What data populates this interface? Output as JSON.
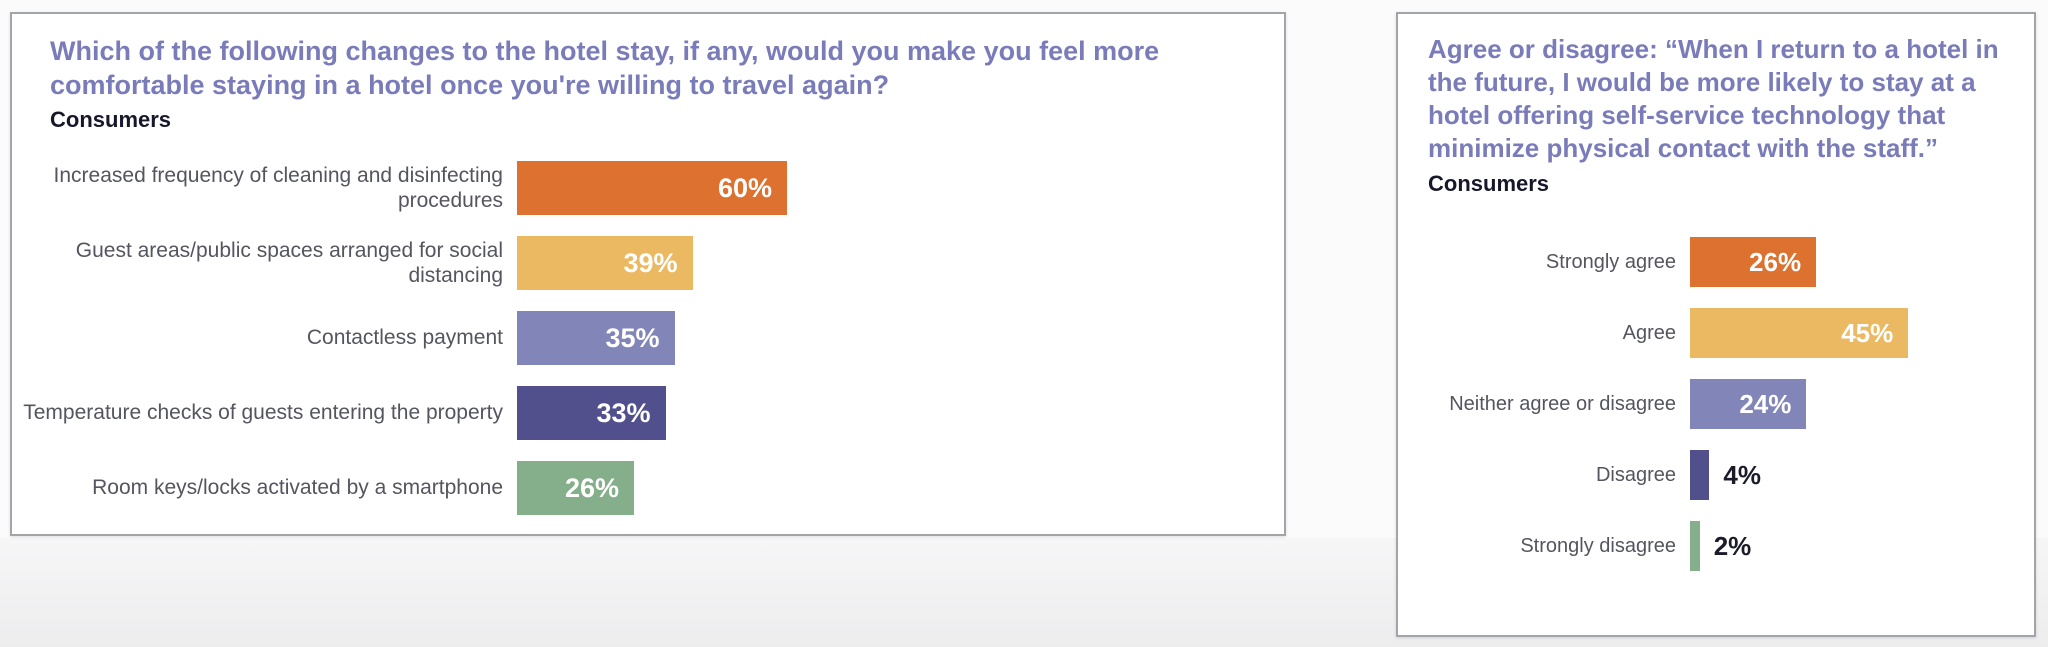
{
  "chart_data": [
    {
      "type": "bar",
      "orientation": "horizontal",
      "title": "Which of the following changes to the hotel stay, if any, would you make you feel more comfortable staying in a hotel once you're willing to travel again?",
      "subtitle": "Consumers",
      "categories": [
        "Increased frequency of cleaning and disinfecting procedures",
        "Guest areas/public spaces arranged for social distancing",
        "Contactless payment",
        "Temperature checks of guests entering the property",
        "Room keys/locks activated by a smartphone"
      ],
      "values": [
        60,
        39,
        35,
        33,
        26
      ],
      "value_labels": [
        "60%",
        "39%",
        "35%",
        "33%",
        "26%"
      ],
      "bar_colors": [
        "#dc7130",
        "#ecb963",
        "#8285b8",
        "#514f8c",
        "#85ae8a"
      ],
      "xlim": [
        0,
        100
      ],
      "grid": false,
      "legend": false,
      "value_label_position": "inside-end",
      "title_color": "#7a7cba"
    },
    {
      "type": "bar",
      "orientation": "horizontal",
      "title": "Agree or disagree: “When I return to a hotel in the future, I would be more likely to stay at a hotel offering self-service technology that minimize physical contact with the staff.”",
      "subtitle": "Consumers",
      "categories": [
        "Strongly agree",
        "Agree",
        "Neither agree or disagree",
        "Disagree",
        "Strongly disagree"
      ],
      "values": [
        26,
        45,
        24,
        4,
        2
      ],
      "value_labels": [
        "26%",
        "45%",
        "24%",
        "4%",
        "2%"
      ],
      "bar_colors": [
        "#dc7130",
        "#ecb963",
        "#8285b8",
        "#514f8c",
        "#85ae8a"
      ],
      "xlim": [
        0,
        100
      ],
      "grid": false,
      "legend": false,
      "value_label_position": "inside-end for large bars, outside-end for 4% and 2%",
      "title_color": "#7a7cba"
    }
  ]
}
